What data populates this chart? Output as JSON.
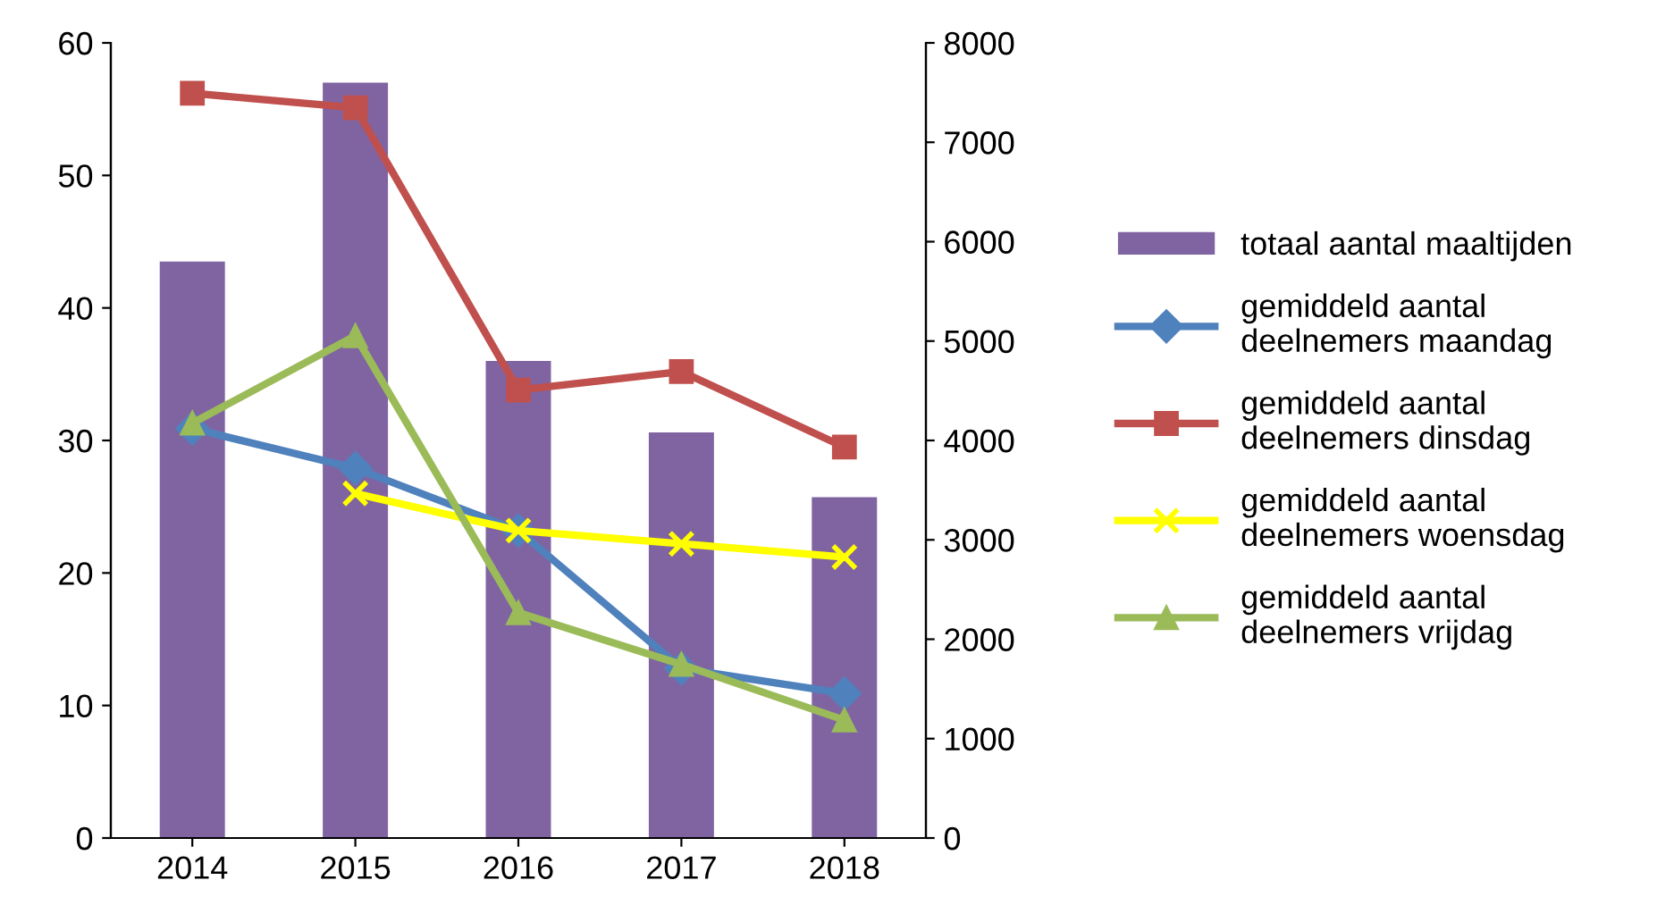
{
  "chart_data": {
    "type": "line",
    "categories": [
      "2014",
      "2015",
      "2016",
      "2017",
      "2018"
    ],
    "series": [
      {
        "name": "totaal aantal maaltijden",
        "type": "bar",
        "axis": "y2",
        "color": "#8064a2",
        "values": [
          5800,
          7600,
          4800,
          4080,
          3430
        ]
      },
      {
        "name": "gemiddeld aantal\ndeelnemers maandag",
        "color": "#4f81bd",
        "marker": "diamond",
        "values": [
          30.9,
          27.9,
          23.2,
          12.8,
          10.9
        ]
      },
      {
        "name": "gemiddeld aantal\ndeelnemers dinsdag",
        "color": "#c0504d",
        "marker": "square",
        "values": [
          56.2,
          55.1,
          33.8,
          35.2,
          29.5
        ]
      },
      {
        "name": "gemiddeld aantal\ndeelnemers woensdag",
        "color": "#ffff00",
        "marker": "cross",
        "values": [
          null,
          26.0,
          23.2,
          22.2,
          21.2
        ]
      },
      {
        "name": "gemiddeld aantal\ndeelnemers vrijdag",
        "color": "#9bbb59",
        "marker": "triangle",
        "values": [
          31.3,
          37.9,
          17.0,
          13.1,
          8.9
        ]
      }
    ],
    "ylim": [
      0,
      60
    ],
    "yticks": [
      0,
      10,
      20,
      30,
      40,
      50,
      60
    ],
    "y2lim": [
      0,
      8000
    ],
    "y2ticks": [
      0,
      1000,
      2000,
      3000,
      4000,
      5000,
      6000,
      7000,
      8000
    ],
    "legend": "right",
    "grid": false
  }
}
